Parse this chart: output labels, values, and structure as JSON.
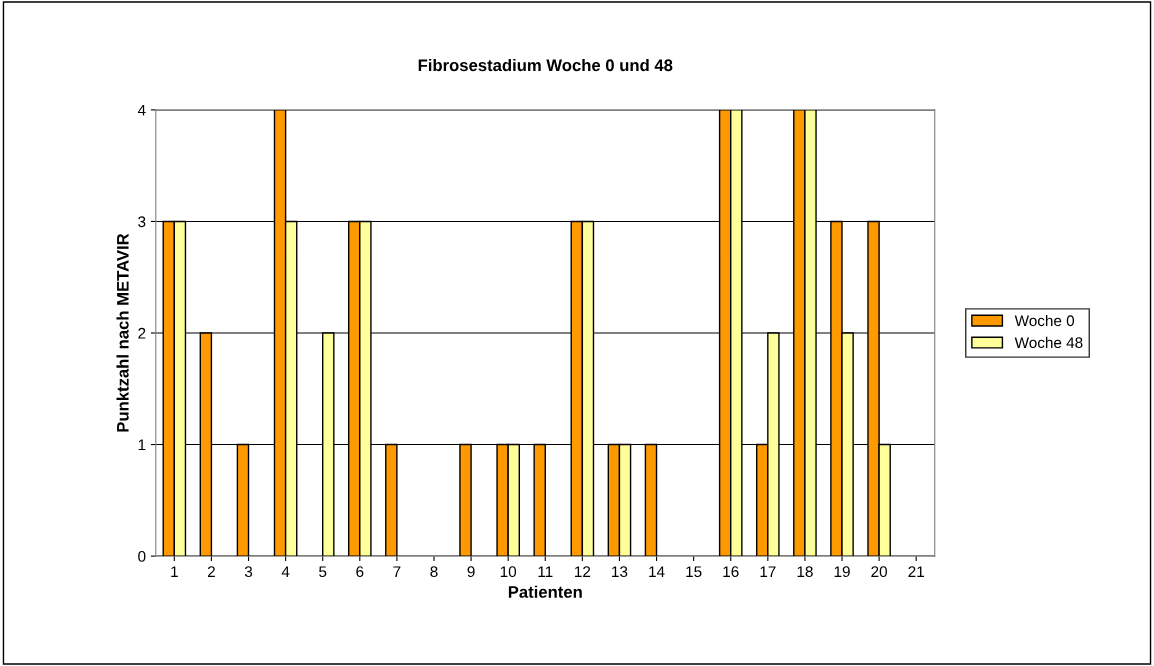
{
  "chart_data": {
    "type": "bar",
    "title": "Fibrosestadium Woche 0 und 48",
    "xlabel": "Patienten",
    "ylabel": "Punktzahl nach METAVIR",
    "categories": [
      "1",
      "2",
      "3",
      "4",
      "5",
      "6",
      "7",
      "8",
      "9",
      "10",
      "11",
      "12",
      "13",
      "14",
      "15",
      "16",
      "17",
      "18",
      "19",
      "20",
      "21"
    ],
    "series": [
      {
        "name": "Woche 0",
        "color": "#ff9900",
        "values": [
          3,
          2,
          1,
          4,
          0,
          3,
          1,
          0,
          1,
          1,
          1,
          3,
          1,
          1,
          0,
          4,
          1,
          4,
          3,
          3,
          0
        ]
      },
      {
        "name": "Woche 48",
        "color": "#ffff99",
        "values": [
          3,
          0,
          0,
          3,
          2,
          3,
          0,
          0,
          0,
          1,
          0,
          3,
          1,
          0,
          0,
          4,
          2,
          4,
          2,
          1,
          0
        ]
      }
    ],
    "ylim": [
      0,
      4
    ],
    "yticks": [
      0,
      1,
      2,
      3,
      4
    ],
    "grid": "y",
    "legend": "right"
  }
}
